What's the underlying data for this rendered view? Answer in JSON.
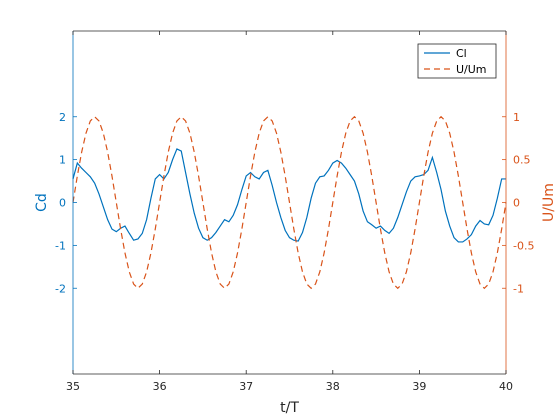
{
  "chart_data": {
    "type": "line",
    "title": "",
    "xlabel": "t/T",
    "ylabel_left": "Cd",
    "ylabel_right": "U/Um",
    "xlim": [
      35,
      40
    ],
    "ylim_left": [
      -4,
      4
    ],
    "ylim_right": [
      -2,
      2
    ],
    "x_ticks": [
      35,
      36,
      37,
      38,
      39,
      40
    ],
    "y_ticks_left": [
      -2,
      -1,
      0,
      1,
      2
    ],
    "y_ticks_right": [
      -1,
      -0.5,
      0,
      0.5,
      1
    ],
    "grid": false,
    "legend_position": "top-right",
    "colors": {
      "left_axis": "#0072BD",
      "right_axis": "#D95319",
      "frame": "#262626"
    },
    "series": [
      {
        "name": "Cl",
        "axis": "left",
        "style": "solid",
        "color": "#0072BD",
        "x": [
          35.0,
          35.05,
          35.1,
          35.15,
          35.2,
          35.25,
          35.3,
          35.35,
          35.4,
          35.45,
          35.5,
          35.55,
          35.6,
          35.65,
          35.7,
          35.75,
          35.8,
          35.85,
          35.9,
          35.95,
          36.0,
          36.05,
          36.1,
          36.15,
          36.2,
          36.25,
          36.3,
          36.35,
          36.4,
          36.45,
          36.5,
          36.55,
          36.6,
          36.65,
          36.7,
          36.75,
          36.8,
          36.85,
          36.9,
          36.95,
          37.0,
          37.05,
          37.1,
          37.15,
          37.2,
          37.25,
          37.3,
          37.35,
          37.4,
          37.45,
          37.5,
          37.55,
          37.6,
          37.65,
          37.7,
          37.75,
          37.8,
          37.85,
          37.9,
          37.95,
          38.0,
          38.05,
          38.1,
          38.15,
          38.2,
          38.25,
          38.3,
          38.35,
          38.4,
          38.45,
          38.5,
          38.55,
          38.6,
          38.65,
          38.7,
          38.75,
          38.8,
          38.85,
          38.9,
          38.95,
          39.0,
          39.05,
          39.1,
          39.15,
          39.2,
          39.25,
          39.3,
          39.35,
          39.4,
          39.45,
          39.5,
          39.55,
          39.6,
          39.65,
          39.7,
          39.75,
          39.8,
          39.85,
          39.9,
          39.95,
          40.0
        ],
        "y": [
          0.55,
          0.92,
          0.8,
          0.7,
          0.6,
          0.45,
          0.2,
          -0.1,
          -0.4,
          -0.62,
          -0.68,
          -0.6,
          -0.55,
          -0.72,
          -0.88,
          -0.85,
          -0.72,
          -0.4,
          0.1,
          0.55,
          0.65,
          0.55,
          0.7,
          1.0,
          1.25,
          1.2,
          0.7,
          0.2,
          -0.25,
          -0.6,
          -0.82,
          -0.88,
          -0.82,
          -0.7,
          -0.55,
          -0.4,
          -0.45,
          -0.3,
          -0.05,
          0.3,
          0.62,
          0.7,
          0.6,
          0.55,
          0.7,
          0.75,
          0.4,
          0.0,
          -0.35,
          -0.65,
          -0.82,
          -0.88,
          -0.9,
          -0.7,
          -0.35,
          0.1,
          0.45,
          0.6,
          0.62,
          0.75,
          0.92,
          0.98,
          0.92,
          0.8,
          0.65,
          0.5,
          0.2,
          -0.2,
          -0.45,
          -0.52,
          -0.6,
          -0.55,
          -0.65,
          -0.72,
          -0.6,
          -0.35,
          -0.05,
          0.25,
          0.5,
          0.6,
          0.62,
          0.65,
          0.75,
          1.05,
          0.7,
          0.3,
          -0.2,
          -0.55,
          -0.82,
          -0.92,
          -0.92,
          -0.85,
          -0.75,
          -0.55,
          -0.42,
          -0.5,
          -0.52,
          -0.3,
          0.1,
          0.55,
          0.55
        ]
      },
      {
        "name": "U/Um",
        "axis": "right",
        "style": "dashed",
        "color": "#D95319",
        "x": [
          35.0,
          35.05,
          35.1,
          35.15,
          35.2,
          35.25,
          35.3,
          35.35,
          35.4,
          35.45,
          35.5,
          35.55,
          35.6,
          35.65,
          35.7,
          35.75,
          35.8,
          35.85,
          35.9,
          35.95,
          36.0,
          36.05,
          36.1,
          36.15,
          36.2,
          36.25,
          36.3,
          36.35,
          36.4,
          36.45,
          36.5,
          36.55,
          36.6,
          36.65,
          36.7,
          36.75,
          36.8,
          36.85,
          36.9,
          36.95,
          37.0,
          37.05,
          37.1,
          37.15,
          37.2,
          37.25,
          37.3,
          37.35,
          37.4,
          37.45,
          37.5,
          37.55,
          37.6,
          37.65,
          37.7,
          37.75,
          37.8,
          37.85,
          37.9,
          37.95,
          38.0,
          38.05,
          38.1,
          38.15,
          38.2,
          38.25,
          38.3,
          38.35,
          38.4,
          38.45,
          38.5,
          38.55,
          38.6,
          38.65,
          38.7,
          38.75,
          38.8,
          38.85,
          38.9,
          38.95,
          39.0,
          39.05,
          39.1,
          39.15,
          39.2,
          39.25,
          39.3,
          39.35,
          39.4,
          39.45,
          39.5,
          39.55,
          39.6,
          39.65,
          39.7,
          39.75,
          39.8,
          39.85,
          39.9,
          39.95,
          40.0
        ],
        "y": [
          0.0,
          0.309,
          0.588,
          0.809,
          0.951,
          1.0,
          0.951,
          0.809,
          0.588,
          0.309,
          0.0,
          -0.309,
          -0.588,
          -0.809,
          -0.951,
          -1.0,
          -0.951,
          -0.809,
          -0.588,
          -0.309,
          0.0,
          0.309,
          0.588,
          0.809,
          0.951,
          1.0,
          0.951,
          0.809,
          0.588,
          0.309,
          0.0,
          -0.309,
          -0.588,
          -0.809,
          -0.951,
          -1.0,
          -0.951,
          -0.809,
          -0.588,
          -0.309,
          0.0,
          0.309,
          0.588,
          0.809,
          0.951,
          1.0,
          0.951,
          0.809,
          0.588,
          0.309,
          0.0,
          -0.309,
          -0.588,
          -0.809,
          -0.951,
          -1.0,
          -0.951,
          -0.809,
          -0.588,
          -0.309,
          0.0,
          0.309,
          0.588,
          0.809,
          0.951,
          1.0,
          0.951,
          0.809,
          0.588,
          0.309,
          0.0,
          -0.309,
          -0.588,
          -0.809,
          -0.951,
          -1.0,
          -0.951,
          -0.809,
          -0.588,
          -0.309,
          0.0,
          0.309,
          0.588,
          0.809,
          0.951,
          1.0,
          0.951,
          0.809,
          0.588,
          0.309,
          0.0,
          -0.309,
          -0.588,
          -0.809,
          -0.951,
          -1.0,
          -0.951,
          -0.809,
          -0.588,
          -0.309,
          0.0
        ]
      }
    ]
  }
}
